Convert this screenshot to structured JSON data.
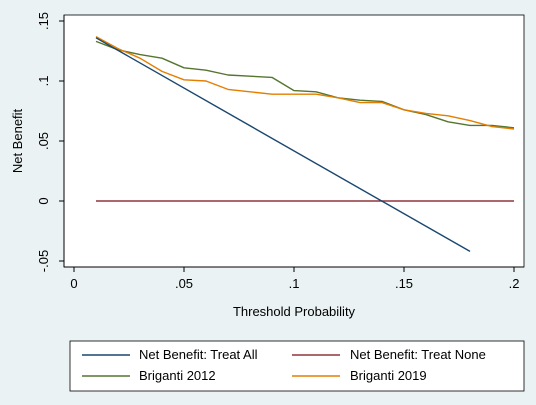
{
  "chart_data": {
    "type": "line",
    "xlabel": "Threshold Probability",
    "ylabel": "Net Benefit",
    "xlim": [
      0,
      0.2
    ],
    "ylim": [
      -0.055,
      0.155
    ],
    "xticks": [
      0,
      0.05,
      0.1,
      0.15,
      0.2
    ],
    "xtick_labels": [
      "0",
      ".05",
      ".1",
      ".15",
      ".2"
    ],
    "yticks": [
      -0.05,
      0,
      0.05,
      0.1,
      0.15
    ],
    "ytick_labels": [
      "-.05",
      "0",
      ".05",
      ".1",
      ".15"
    ],
    "grid": false,
    "legend_position": "bottom",
    "series": [
      {
        "name": "Net Benefit: Treat All",
        "color": "#1a476f",
        "x": [
          0.01,
          0.18
        ],
        "y": [
          0.136,
          -0.042
        ]
      },
      {
        "name": "Net Benefit: Treat None",
        "color": "#90353b",
        "x": [
          0.01,
          0.2
        ],
        "y": [
          0,
          0
        ]
      },
      {
        "name": "Briganti 2012",
        "color": "#55752f",
        "x": [
          0.01,
          0.02,
          0.03,
          0.04,
          0.05,
          0.06,
          0.07,
          0.08,
          0.09,
          0.1,
          0.11,
          0.12,
          0.13,
          0.14,
          0.15,
          0.16,
          0.17,
          0.18,
          0.19,
          0.2
        ],
        "y": [
          0.133,
          0.126,
          0.122,
          0.119,
          0.111,
          0.109,
          0.105,
          0.104,
          0.103,
          0.092,
          0.091,
          0.086,
          0.084,
          0.083,
          0.076,
          0.072,
          0.066,
          0.063,
          0.063,
          0.061
        ]
      },
      {
        "name": "Briganti 2019",
        "color": "#e37e00",
        "x": [
          0.01,
          0.02,
          0.03,
          0.04,
          0.05,
          0.06,
          0.07,
          0.08,
          0.09,
          0.1,
          0.11,
          0.12,
          0.13,
          0.14,
          0.15,
          0.16,
          0.17,
          0.18,
          0.19,
          0.2
        ],
        "y": [
          0.137,
          0.127,
          0.119,
          0.108,
          0.101,
          0.1,
          0.093,
          0.091,
          0.089,
          0.089,
          0.089,
          0.086,
          0.082,
          0.082,
          0.076,
          0.073,
          0.071,
          0.067,
          0.062,
          0.06
        ]
      }
    ]
  }
}
